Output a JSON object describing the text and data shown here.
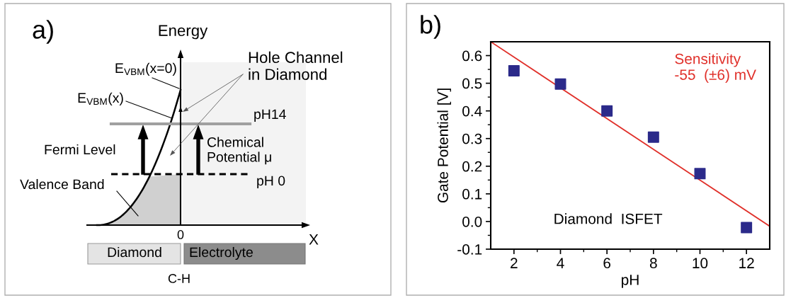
{
  "chart_data": [
    {
      "type": "other",
      "title": "a)",
      "annotations": [
        "Energy",
        "E$_{VBM}$(x=0)",
        "E$_{VBM}$(x)",
        "Hole Channel\nin Diamond",
        "pH14",
        "Chemical\nPotential μ",
        "Fermi Level",
        "Valence Band",
        "pH 0",
        "0",
        "X",
        "Diamond",
        "Electrolyte",
        "C-H"
      ]
    },
    {
      "type": "scatter",
      "title": "b)",
      "xlabel": "pH",
      "ylabel": "Gate Potential [V]",
      "xlim": [
        1,
        13
      ],
      "xticks": [
        2,
        {
          "value": 3,
          "label": null
        },
        4,
        {
          "value": 5,
          "label": null
        },
        6,
        {
          "value": 7,
          "label": null
        },
        8,
        {
          "value": 9,
          "label": null
        },
        10,
        {
          "value": 11,
          "label": null
        },
        12
      ],
      "ylim": [
        -0.1,
        0.65
      ],
      "yticks": [
        {
          "value": -0.1,
          "label": "-0.1"
        },
        {
          "value": -0.05,
          "label": null
        },
        {
          "value": 0,
          "label": "0.0"
        },
        {
          "value": 0.05,
          "label": null
        },
        0.1,
        {
          "value": 0.15,
          "label": null
        },
        0.2,
        {
          "value": 0.25,
          "label": null
        },
        0.3,
        {
          "value": 0.35,
          "label": null
        },
        0.4,
        {
          "value": 0.45,
          "label": null
        },
        0.5,
        {
          "value": 0.55,
          "label": null
        },
        0.6
      ],
      "series": [
        {
          "type": "scatter",
          "marker": "square",
          "color": "#2b2a8a",
          "x": [
            2,
            4,
            6,
            8,
            10,
            12
          ],
          "values": [
            0.545,
            0.497,
            0.4,
            0.305,
            0.173,
            -0.022
          ]
        },
        {
          "type": "line",
          "name": "Sensitivity\n-55  (±6) mV",
          "color": "#e0302a",
          "x": [
            1,
            13
          ],
          "values": [
            0.65,
            -0.017
          ]
        }
      ],
      "annotations": [
        "Diamond  ISFET"
      ]
    }
  ]
}
